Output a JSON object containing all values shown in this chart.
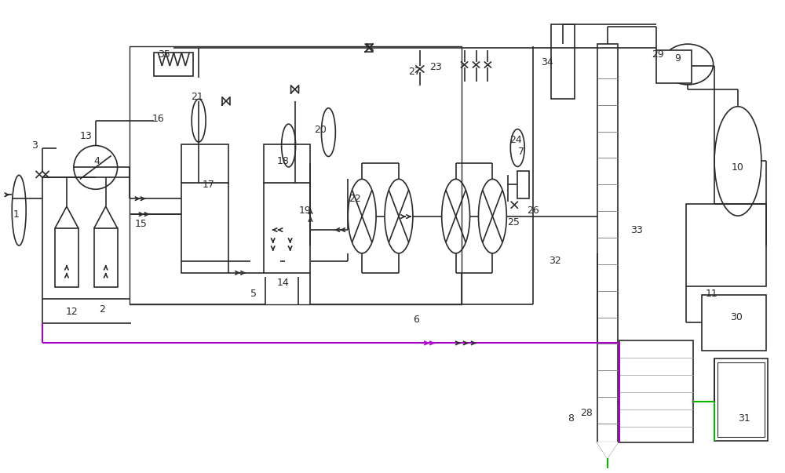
{
  "bg_color": "#ffffff",
  "lc": "#2a2a2a",
  "lw": 1.2,
  "gc": "#00bb00",
  "pc": "#aa00cc",
  "labels": [
    [
      "1",
      18,
      330
    ],
    [
      "2",
      128,
      208
    ],
    [
      "3",
      42,
      418
    ],
    [
      "4",
      122,
      398
    ],
    [
      "5",
      322,
      228
    ],
    [
      "6",
      530,
      195
    ],
    [
      "7",
      665,
      410
    ],
    [
      "8",
      728,
      68
    ],
    [
      "9",
      865,
      530
    ],
    [
      "10",
      942,
      390
    ],
    [
      "11",
      908,
      228
    ],
    [
      "12",
      90,
      205
    ],
    [
      "13",
      108,
      430
    ],
    [
      "14",
      360,
      242
    ],
    [
      "15",
      178,
      318
    ],
    [
      "16",
      200,
      452
    ],
    [
      "17",
      265,
      368
    ],
    [
      "18",
      360,
      398
    ],
    [
      "19",
      388,
      335
    ],
    [
      "20",
      408,
      438
    ],
    [
      "21",
      250,
      480
    ],
    [
      "22",
      452,
      350
    ],
    [
      "23",
      555,
      518
    ],
    [
      "24",
      658,
      425
    ],
    [
      "25",
      655,
      320
    ],
    [
      "26",
      680,
      335
    ],
    [
      "27",
      528,
      512
    ],
    [
      "28",
      748,
      75
    ],
    [
      "29",
      840,
      535
    ],
    [
      "30",
      940,
      198
    ],
    [
      "31",
      950,
      68
    ],
    [
      "32",
      708,
      270
    ],
    [
      "33",
      812,
      310
    ],
    [
      "34",
      698,
      525
    ],
    [
      "35",
      208,
      535
    ]
  ]
}
